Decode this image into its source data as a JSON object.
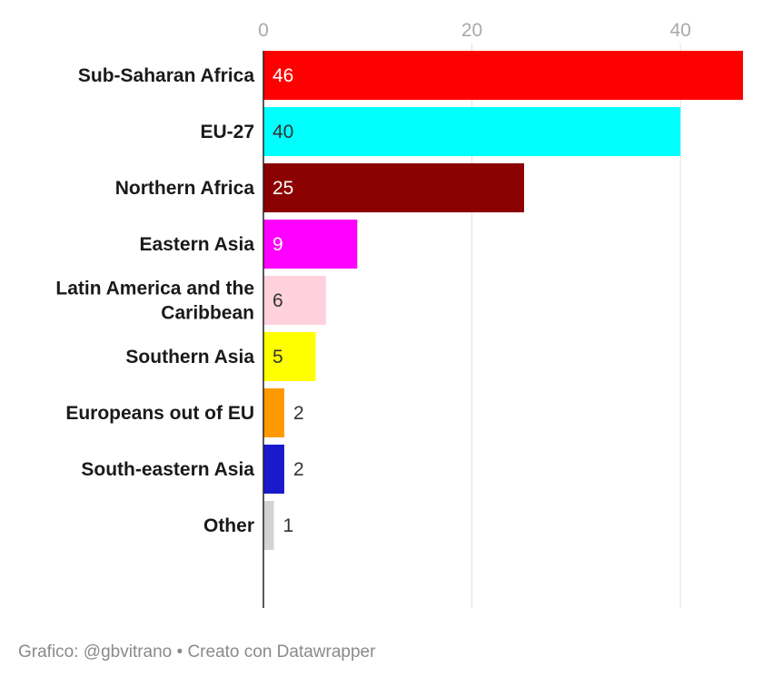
{
  "chart_data": {
    "type": "bar",
    "orientation": "horizontal",
    "categories": [
      "Sub-Saharan Africa",
      "EU-27",
      "Northern Africa",
      "Eastern Asia",
      "Latin America and the Caribbean",
      "Southern Asia",
      "Europeans out of EU",
      "South-eastern Asia",
      "Other"
    ],
    "category_lines": [
      [
        "Sub-Saharan Africa"
      ],
      [
        "EU-27"
      ],
      [
        "Northern Africa"
      ],
      [
        "Eastern Asia"
      ],
      [
        "Latin America and the",
        "Caribbean"
      ],
      [
        "Southern Asia"
      ],
      [
        "Europeans out of EU"
      ],
      [
        "South-eastern Asia"
      ],
      [
        "Other"
      ]
    ],
    "values": [
      46,
      40,
      25,
      9,
      6,
      5,
      2,
      2,
      1
    ],
    "colors": [
      "#ff0000",
      "#00ffff",
      "#8b0000",
      "#ff00ff",
      "#ffd1dc",
      "#ffff00",
      "#ff9900",
      "#1a1acc",
      "#d3d3d3"
    ],
    "label_colors": [
      "#ffffff",
      "#333333",
      "#ffffff",
      "#ffffff",
      "#333333",
      "#333333",
      "#333333",
      "#333333",
      "#333333"
    ],
    "xlim": [
      0,
      46
    ],
    "xticks": [
      0,
      20,
      40
    ],
    "grid": true,
    "axis_position": "top",
    "title": "",
    "xlabel": "",
    "ylabel": ""
  },
  "footer": {
    "text": "Grafico: @gbvitrano • Creato con Datawrapper"
  }
}
